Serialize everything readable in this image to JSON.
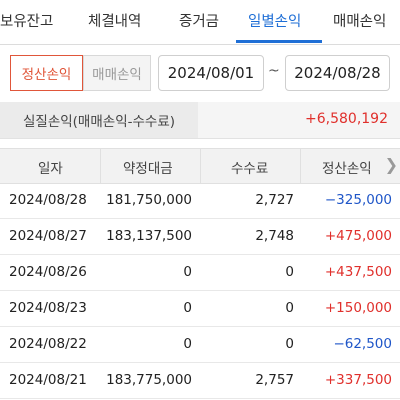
{
  "tabs": [
    {
      "label": "보유잔고"
    },
    {
      "label": "체결내역"
    },
    {
      "label": "증거금"
    },
    {
      "label": "일별손익"
    },
    {
      "label": "매매손익"
    }
  ],
  "filter": {
    "segment_settle": "정산손익",
    "segment_trade": "매매손익",
    "date_from": "2024/08/01",
    "separator": "~",
    "date_to": "2024/08/28"
  },
  "summary": {
    "label": "실질손익(매매손익-수수료)",
    "value": "+6,580,192"
  },
  "table": {
    "headers": [
      "일자",
      "약정대금",
      "수수료",
      "정산손익"
    ],
    "rows": [
      {
        "date": "2024/08/28",
        "amount": "181,750,000",
        "fee": "2,727",
        "pl": "−325,000",
        "sign": "neg"
      },
      {
        "date": "2024/08/27",
        "amount": "183,137,500",
        "fee": "2,748",
        "pl": "+475,000",
        "sign": "pos"
      },
      {
        "date": "2024/08/26",
        "amount": "0",
        "fee": "0",
        "pl": "+437,500",
        "sign": "pos"
      },
      {
        "date": "2024/08/23",
        "amount": "0",
        "fee": "0",
        "pl": "+150,000",
        "sign": "pos"
      },
      {
        "date": "2024/08/22",
        "amount": "0",
        "fee": "0",
        "pl": "−62,500",
        "sign": "neg"
      },
      {
        "date": "2024/08/21",
        "amount": "183,775,000",
        "fee": "2,757",
        "pl": "+337,500",
        "sign": "pos"
      }
    ]
  },
  "colors": {
    "accent": "#1f6fd6",
    "positive": "#e0302c",
    "negative": "#1f56c8",
    "segment_active": "#e0563a"
  },
  "icons": {
    "scroll": "chevron-right-icon"
  }
}
